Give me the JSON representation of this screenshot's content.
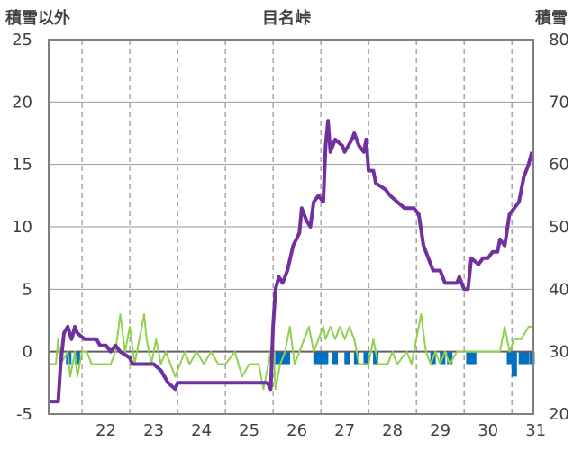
{
  "chart_data": {
    "type": "line",
    "title": "目名峠",
    "left_axis_title": "積雪以外",
    "right_axis_title": "積雪",
    "x_ticks": [
      "22",
      "23",
      "24",
      "25",
      "26",
      "27",
      "28",
      "29",
      "30",
      "31"
    ],
    "left_yticks": [
      "25",
      "20",
      "15",
      "10",
      "5",
      "0",
      "-5"
    ],
    "right_yticks": [
      "80",
      "70",
      "60",
      "50",
      "40",
      "30",
      "20"
    ],
    "left_ylim": [
      -5,
      25
    ],
    "right_ylim": [
      20,
      80
    ],
    "xlim": [
      21.3,
      31.45
    ],
    "grid": {
      "vertical": "dashed",
      "horizontal": "solid"
    },
    "colors": {
      "snow_depth": "#7030a0",
      "temperature": "#92d050",
      "precipitation": "#0070c0"
    },
    "series": [
      {
        "axis": "right",
        "points": [
          [
            21.3,
            22
          ],
          [
            21.5,
            22
          ],
          [
            21.55,
            28
          ],
          [
            21.62,
            33
          ],
          [
            21.7,
            34
          ],
          [
            21.78,
            32
          ],
          [
            21.85,
            34
          ],
          [
            21.9,
            33
          ],
          [
            22.05,
            32
          ],
          [
            22.3,
            32
          ],
          [
            22.38,
            31
          ],
          [
            22.5,
            31
          ],
          [
            22.6,
            30
          ],
          [
            22.7,
            31
          ],
          [
            22.8,
            30
          ],
          [
            23.0,
            29
          ],
          [
            23.05,
            28
          ],
          [
            23.5,
            28
          ],
          [
            23.65,
            27
          ],
          [
            23.8,
            25
          ],
          [
            23.95,
            24
          ],
          [
            24.0,
            25
          ],
          [
            24.5,
            25
          ],
          [
            25.0,
            25
          ],
          [
            25.5,
            25
          ],
          [
            25.88,
            25
          ],
          [
            25.95,
            24
          ],
          [
            26.0,
            34
          ],
          [
            26.05,
            40
          ],
          [
            26.12,
            42
          ],
          [
            26.2,
            41
          ],
          [
            26.3,
            43
          ],
          [
            26.42,
            47
          ],
          [
            26.55,
            49
          ],
          [
            26.6,
            53
          ],
          [
            26.7,
            51
          ],
          [
            26.78,
            50
          ],
          [
            26.85,
            54
          ],
          [
            26.95,
            55
          ],
          [
            27.05,
            54
          ],
          [
            27.1,
            63
          ],
          [
            27.15,
            67
          ],
          [
            27.2,
            62
          ],
          [
            27.3,
            64
          ],
          [
            27.45,
            63
          ],
          [
            27.5,
            62
          ],
          [
            27.65,
            64
          ],
          [
            27.7,
            65
          ],
          [
            27.8,
            63
          ],
          [
            27.9,
            62
          ],
          [
            27.95,
            64
          ],
          [
            28.0,
            59
          ],
          [
            28.1,
            59
          ],
          [
            28.15,
            57
          ],
          [
            28.35,
            56
          ],
          [
            28.45,
            55
          ],
          [
            28.6,
            54
          ],
          [
            28.75,
            53
          ],
          [
            28.95,
            53
          ],
          [
            29.05,
            52
          ],
          [
            29.15,
            47
          ],
          [
            29.25,
            45
          ],
          [
            29.35,
            43
          ],
          [
            29.5,
            43
          ],
          [
            29.6,
            41
          ],
          [
            29.85,
            41
          ],
          [
            29.9,
            42
          ],
          [
            30.0,
            40
          ],
          [
            30.08,
            40
          ],
          [
            30.15,
            45
          ],
          [
            30.3,
            44
          ],
          [
            30.4,
            45
          ],
          [
            30.5,
            45
          ],
          [
            30.6,
            46
          ],
          [
            30.7,
            46
          ],
          [
            30.75,
            48
          ],
          [
            30.85,
            47
          ],
          [
            30.95,
            52
          ],
          [
            31.05,
            53
          ],
          [
            31.15,
            54
          ],
          [
            31.25,
            58
          ],
          [
            31.35,
            60
          ],
          [
            31.42,
            62
          ]
        ]
      },
      {
        "axis": "left",
        "points": [
          [
            21.3,
            -1
          ],
          [
            21.45,
            -1
          ],
          [
            21.5,
            1
          ],
          [
            21.55,
            -1
          ],
          [
            21.7,
            0
          ],
          [
            21.75,
            -2
          ],
          [
            21.85,
            0
          ],
          [
            21.9,
            -2
          ],
          [
            22.0,
            0
          ],
          [
            22.1,
            0
          ],
          [
            22.2,
            -1
          ],
          [
            22.5,
            -1
          ],
          [
            22.6,
            -1
          ],
          [
            22.7,
            0
          ],
          [
            22.8,
            3
          ],
          [
            22.9,
            0
          ],
          [
            23.0,
            2
          ],
          [
            23.1,
            -1
          ],
          [
            23.2,
            1
          ],
          [
            23.3,
            3
          ],
          [
            23.35,
            1
          ],
          [
            23.45,
            -1
          ],
          [
            23.55,
            1
          ],
          [
            23.65,
            -1
          ],
          [
            23.75,
            0
          ],
          [
            23.85,
            -1
          ],
          [
            23.95,
            -2
          ],
          [
            24.05,
            -1
          ],
          [
            24.15,
            0
          ],
          [
            24.25,
            -1
          ],
          [
            24.4,
            0
          ],
          [
            24.55,
            -1
          ],
          [
            24.7,
            0
          ],
          [
            24.85,
            -1
          ],
          [
            25.0,
            -1
          ],
          [
            25.2,
            0
          ],
          [
            25.35,
            -2
          ],
          [
            25.5,
            -1
          ],
          [
            25.7,
            -1
          ],
          [
            25.8,
            -3
          ],
          [
            25.9,
            -1
          ],
          [
            26.0,
            1
          ],
          [
            26.05,
            -3
          ],
          [
            26.15,
            -1
          ],
          [
            26.25,
            0
          ],
          [
            26.35,
            2
          ],
          [
            26.45,
            -1
          ],
          [
            26.55,
            0
          ],
          [
            26.75,
            2
          ],
          [
            26.85,
            0
          ],
          [
            27.05,
            2
          ],
          [
            27.1,
            1
          ],
          [
            27.2,
            2
          ],
          [
            27.3,
            1
          ],
          [
            27.4,
            2
          ],
          [
            27.5,
            1
          ],
          [
            27.6,
            2
          ],
          [
            27.7,
            1
          ],
          [
            27.8,
            -1
          ],
          [
            28.0,
            -1
          ],
          [
            28.1,
            1
          ],
          [
            28.2,
            -1
          ],
          [
            28.4,
            -1
          ],
          [
            28.5,
            0
          ],
          [
            28.6,
            -1
          ],
          [
            28.8,
            0
          ],
          [
            28.9,
            -1
          ],
          [
            29.0,
            1
          ],
          [
            29.1,
            3
          ],
          [
            29.2,
            0
          ],
          [
            29.3,
            -1
          ],
          [
            29.4,
            0
          ],
          [
            29.5,
            -1
          ],
          [
            29.6,
            0
          ],
          [
            29.7,
            -1
          ],
          [
            29.85,
            0
          ],
          [
            30.0,
            0
          ],
          [
            30.2,
            0
          ],
          [
            30.5,
            0
          ],
          [
            30.75,
            0
          ],
          [
            30.85,
            2
          ],
          [
            30.95,
            0
          ],
          [
            31.05,
            1
          ],
          [
            31.2,
            1
          ],
          [
            31.35,
            2
          ],
          [
            31.45,
            2
          ]
        ]
      },
      {
        "axis": "left",
        "bars": [
          [
            21.72,
            -1
          ],
          [
            21.9,
            -1
          ],
          [
            26.1,
            -1
          ],
          [
            26.2,
            -1
          ],
          [
            26.3,
            -1
          ],
          [
            26.9,
            -1
          ],
          [
            27.0,
            -1
          ],
          [
            27.1,
            -1
          ],
          [
            27.3,
            -1
          ],
          [
            27.55,
            -1
          ],
          [
            27.75,
            -1
          ],
          [
            27.95,
            -1
          ],
          [
            28.15,
            -1
          ],
          [
            29.35,
            -1
          ],
          [
            29.55,
            -1
          ],
          [
            29.7,
            -1
          ],
          [
            30.1,
            -1
          ],
          [
            30.2,
            -1
          ],
          [
            30.95,
            -1
          ],
          [
            31.05,
            -2
          ],
          [
            31.2,
            -1
          ],
          [
            31.3,
            -1
          ],
          [
            31.42,
            -1
          ]
        ]
      }
    ]
  }
}
